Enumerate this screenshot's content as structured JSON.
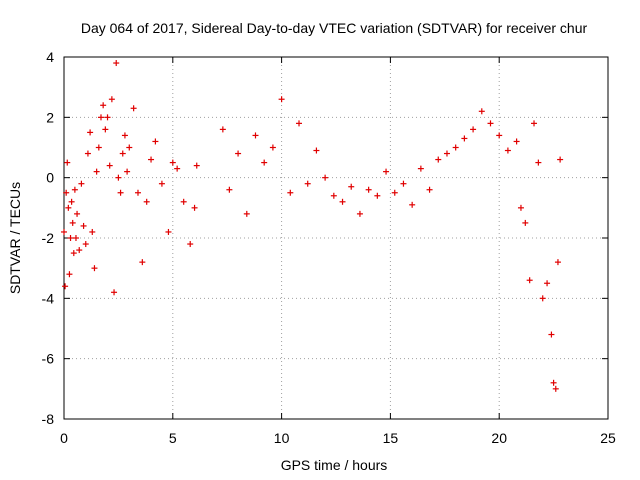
{
  "chart_data": {
    "type": "scatter",
    "title": "Day 064 of 2017, Sidereal Day-to-day VTEC variation (SDTVAR) for receiver chur",
    "xlabel": "GPS time / hours",
    "ylabel": "SDTVAR / TECUs",
    "xlim": [
      0,
      25
    ],
    "ylim": [
      -8,
      4
    ],
    "xticks": [
      0,
      5,
      10,
      15,
      20,
      25
    ],
    "yticks": [
      -8,
      -6,
      -4,
      -2,
      0,
      2,
      4
    ],
    "xtick_labels": [
      "0",
      "5",
      "10",
      "15",
      "20",
      "25"
    ],
    "ytick_labels": [
      "-8",
      "-6",
      "-4",
      "-2",
      "0",
      "2",
      "4"
    ],
    "grid": true,
    "marker": "+",
    "color": "#e00000",
    "series": [
      {
        "name": "SDTVAR",
        "x": [
          0.0,
          0.05,
          0.1,
          0.15,
          0.2,
          0.25,
          0.3,
          0.35,
          0.4,
          0.45,
          0.5,
          0.55,
          0.6,
          0.7,
          0.8,
          0.9,
          1.0,
          1.1,
          1.2,
          1.3,
          1.4,
          1.5,
          1.6,
          1.7,
          1.8,
          1.9,
          2.0,
          2.1,
          2.2,
          2.3,
          2.4,
          2.5,
          2.6,
          2.7,
          2.8,
          2.9,
          3.0,
          3.2,
          3.4,
          3.6,
          3.8,
          4.0,
          4.2,
          4.5,
          4.8,
          5.0,
          5.2,
          5.5,
          5.8,
          6.0,
          6.1,
          7.3,
          7.6,
          8.0,
          8.4,
          8.8,
          9.2,
          9.6,
          10.0,
          10.4,
          10.8,
          11.2,
          11.6,
          12.0,
          12.4,
          12.8,
          13.2,
          13.6,
          14.0,
          14.4,
          14.8,
          15.2,
          15.6,
          16.0,
          16.4,
          16.8,
          17.2,
          17.6,
          18.0,
          18.4,
          18.8,
          19.2,
          19.6,
          20.0,
          20.4,
          20.8,
          21.0,
          21.2,
          21.4,
          21.6,
          21.8,
          22.0,
          22.2,
          22.4,
          22.5,
          22.6,
          22.7,
          22.8
        ],
        "y": [
          -1.8,
          -3.6,
          -0.5,
          0.5,
          -1.0,
          -3.2,
          -2.0,
          -0.8,
          -1.5,
          -2.5,
          -0.4,
          -2.0,
          -1.2,
          -2.4,
          -0.2,
          -1.6,
          -2.2,
          0.8,
          1.5,
          -1.8,
          -3.0,
          0.2,
          1.0,
          2.0,
          2.4,
          1.6,
          2.0,
          0.4,
          2.6,
          -3.8,
          3.8,
          0.0,
          -0.5,
          0.8,
          1.4,
          0.2,
          1.0,
          2.3,
          -0.5,
          -2.8,
          -0.8,
          0.6,
          1.2,
          -0.2,
          -1.8,
          0.5,
          0.3,
          -0.8,
          -2.2,
          -1.0,
          0.4,
          1.6,
          -0.4,
          0.8,
          -1.2,
          1.4,
          0.5,
          1.0,
          2.6,
          -0.5,
          1.8,
          -0.2,
          0.9,
          0.0,
          -0.6,
          -0.8,
          -0.3,
          -1.2,
          -0.4,
          -0.6,
          0.2,
          -0.5,
          -0.2,
          -0.9,
          0.3,
          -0.4,
          0.6,
          0.8,
          1.0,
          1.3,
          1.6,
          2.2,
          1.8,
          1.4,
          0.9,
          1.2,
          -1.0,
          -1.5,
          -3.4,
          1.8,
          0.5,
          -4.0,
          -3.5,
          -5.2,
          -6.8,
          -7.0,
          -2.8,
          0.6
        ]
      }
    ]
  }
}
